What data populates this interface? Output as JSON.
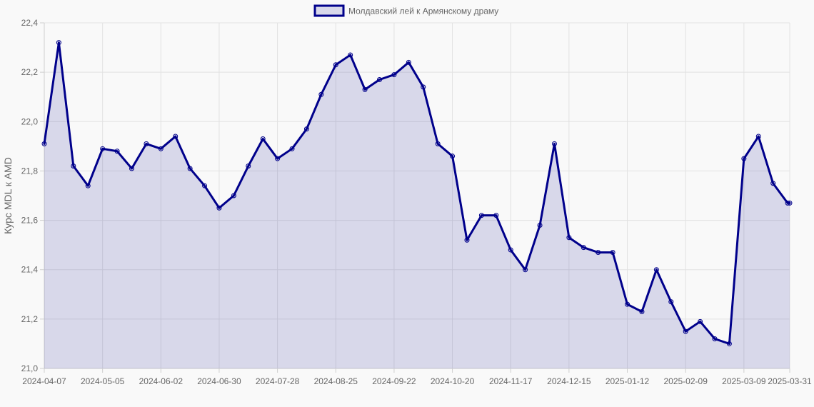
{
  "chart_data": {
    "type": "line",
    "title": "",
    "xlabel": "",
    "ylabel": "Курс MDL к AMD",
    "legend": {
      "position": "top-center"
    },
    "grid": true,
    "ylim": [
      21.0,
      22.4
    ],
    "y_ticks": [
      "21,0",
      "21,2",
      "21,4",
      "21,6",
      "21,8",
      "22,0",
      "22,2",
      "22,4"
    ],
    "x_ticks": [
      "2024-04-07",
      "2024-05-05",
      "2024-06-02",
      "2024-06-30",
      "2024-07-28",
      "2024-08-25",
      "2024-09-22",
      "2024-10-20",
      "2024-11-17",
      "2024-12-15",
      "2025-01-12",
      "2025-02-09",
      "2025-03-09",
      "2025-03-31"
    ],
    "x": [
      "2024-04-07",
      "2024-04-14",
      "2024-04-21",
      "2024-04-28",
      "2024-05-05",
      "2024-05-12",
      "2024-05-19",
      "2024-05-26",
      "2024-06-02",
      "2024-06-09",
      "2024-06-16",
      "2024-06-23",
      "2024-06-30",
      "2024-07-07",
      "2024-07-14",
      "2024-07-21",
      "2024-07-28",
      "2024-08-04",
      "2024-08-11",
      "2024-08-18",
      "2024-08-25",
      "2024-09-01",
      "2024-09-08",
      "2024-09-15",
      "2024-09-22",
      "2024-09-29",
      "2024-10-06",
      "2024-10-13",
      "2024-10-20",
      "2024-10-27",
      "2024-11-03",
      "2024-11-10",
      "2024-11-17",
      "2024-11-24",
      "2024-12-01",
      "2024-12-08",
      "2024-12-15",
      "2024-12-22",
      "2024-12-29",
      "2025-01-05",
      "2025-01-12",
      "2025-01-19",
      "2025-01-26",
      "2025-02-02",
      "2025-02-09",
      "2025-02-16",
      "2025-02-23",
      "2025-03-02",
      "2025-03-09",
      "2025-03-16",
      "2025-03-23",
      "2025-03-30",
      "2025-03-31"
    ],
    "series": [
      {
        "name": "Молдавский лей к Армянскому драму",
        "color": "#00008b",
        "fill": "rgba(0,0,139,0.13)",
        "values": [
          21.91,
          22.32,
          21.82,
          21.74,
          21.89,
          21.88,
          21.81,
          21.91,
          21.89,
          21.94,
          21.81,
          21.74,
          21.65,
          21.7,
          21.82,
          21.93,
          21.85,
          21.89,
          21.97,
          22.11,
          22.23,
          22.27,
          22.13,
          22.17,
          22.19,
          22.24,
          22.14,
          21.91,
          21.86,
          21.52,
          21.62,
          21.62,
          21.48,
          21.4,
          21.58,
          21.91,
          21.53,
          21.49,
          21.47,
          21.47,
          21.26,
          21.23,
          21.4,
          21.27,
          21.15,
          21.19,
          21.12,
          21.1,
          21.85,
          21.94,
          21.75,
          21.67,
          21.67
        ]
      }
    ]
  }
}
